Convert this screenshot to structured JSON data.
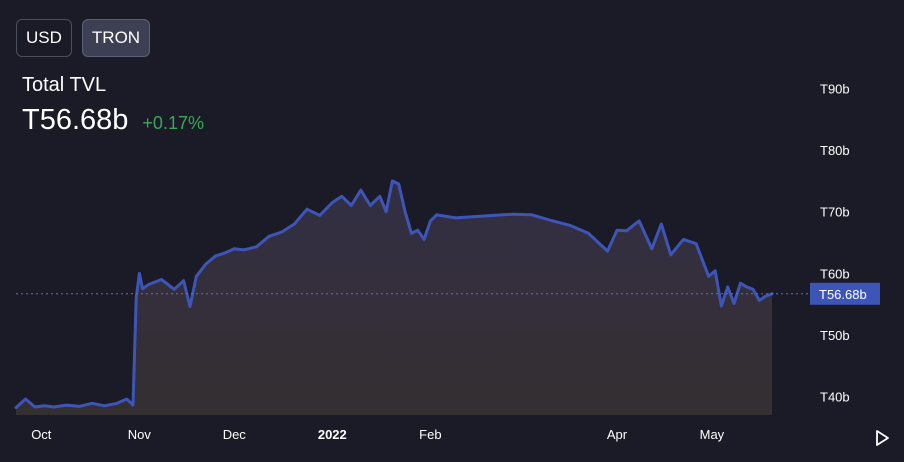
{
  "toolbar": {
    "currency_options": [
      {
        "label": "USD",
        "active": false
      },
      {
        "label": "TRON",
        "active": true
      }
    ]
  },
  "header": {
    "label": "Total TVL",
    "value": "T56.68b",
    "change": "+0.17%",
    "change_color": "#3aa757"
  },
  "chart_data": {
    "type": "area",
    "title": "",
    "xlabel": "",
    "ylabel": "",
    "y_unit_prefix": "T",
    "y_unit_suffix": "b",
    "ylim": [
      37,
      93
    ],
    "yticks": [
      40,
      50,
      60,
      70,
      80,
      90
    ],
    "ytick_labels": [
      "T40b",
      "T50b",
      "T60b",
      "T70b",
      "T80b",
      "T90b"
    ],
    "xticks": [
      {
        "label": "Oct",
        "date": "2021-10-01",
        "bold": false
      },
      {
        "label": "Nov",
        "date": "2021-11-01",
        "bold": false
      },
      {
        "label": "Dec",
        "date": "2021-12-01",
        "bold": false
      },
      {
        "label": "2022",
        "date": "2022-01-01",
        "bold": true
      },
      {
        "label": "Feb",
        "date": "2022-02-01",
        "bold": false
      },
      {
        "label": "Apr",
        "date": "2022-04-01",
        "bold": false
      },
      {
        "label": "May",
        "date": "2022-05-01",
        "bold": false
      }
    ],
    "current_value": 56.68,
    "current_label": "T56.68b",
    "line_color": "#3e55b8",
    "grid": false,
    "series": [
      {
        "x": [
          "2021-09-23",
          "2021-09-26",
          "2021-09-29",
          "2021-10-02",
          "2021-10-05",
          "2021-10-09",
          "2021-10-13",
          "2021-10-17",
          "2021-10-21",
          "2021-10-25",
          "2021-10-28",
          "2021-10-30",
          "2021-10-31",
          "2021-11-01",
          "2021-11-02",
          "2021-11-04",
          "2021-11-08",
          "2021-11-12",
          "2021-11-15",
          "2021-11-17",
          "2021-11-19",
          "2021-11-22",
          "2021-11-25",
          "2021-11-28",
          "2021-12-01",
          "2021-12-04",
          "2021-12-08",
          "2021-12-12",
          "2021-12-16",
          "2021-12-20",
          "2021-12-24",
          "2021-12-28",
          "2022-01-01",
          "2022-01-04",
          "2022-01-07",
          "2022-01-10",
          "2022-01-13",
          "2022-01-16",
          "2022-01-18",
          "2022-01-20",
          "2022-01-22",
          "2022-01-24",
          "2022-01-26",
          "2022-01-28",
          "2022-01-30",
          "2022-02-01",
          "2022-02-03",
          "2022-02-09",
          "2022-02-15",
          "2022-02-21",
          "2022-02-27",
          "2022-03-05",
          "2022-03-11",
          "2022-03-17",
          "2022-03-23",
          "2022-03-29",
          "2022-04-01",
          "2022-04-04",
          "2022-04-08",
          "2022-04-12",
          "2022-04-15",
          "2022-04-18",
          "2022-04-22",
          "2022-04-26",
          "2022-04-30",
          "2022-05-02",
          "2022-05-04",
          "2022-05-06",
          "2022-05-08",
          "2022-05-10",
          "2022-05-12",
          "2022-05-14",
          "2022-05-16",
          "2022-05-18",
          "2022-05-20"
        ],
        "values": [
          38.2,
          39.6,
          38.3,
          38.5,
          38.3,
          38.6,
          38.4,
          38.9,
          38.5,
          38.9,
          39.6,
          38.6,
          56.0,
          60.0,
          57.5,
          58.2,
          59.0,
          57.4,
          58.8,
          54.6,
          59.5,
          61.5,
          62.8,
          63.3,
          64.0,
          63.8,
          64.3,
          66.0,
          66.7,
          68.0,
          70.4,
          69.4,
          71.5,
          72.5,
          71.0,
          73.5,
          71.0,
          72.5,
          70.0,
          75.0,
          74.5,
          70.0,
          66.5,
          67.0,
          65.5,
          68.5,
          69.5,
          69.0,
          69.2,
          69.4,
          69.6,
          69.5,
          68.6,
          67.8,
          66.5,
          63.6,
          67.0,
          66.9,
          68.5,
          64.0,
          68.0,
          63.0,
          65.5,
          64.8,
          59.5,
          60.4,
          54.7,
          57.8,
          55.1,
          58.4,
          57.8,
          57.4,
          55.6,
          56.3,
          56.68
        ]
      }
    ]
  },
  "controls": {
    "play_icon": "play-icon"
  }
}
